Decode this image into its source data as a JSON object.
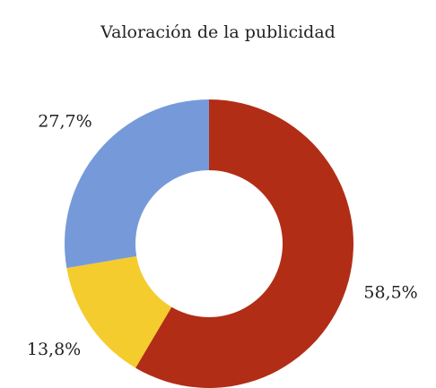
{
  "chart_data": {
    "type": "donut",
    "title": "Valoración de la publicidad",
    "values": [
      58.5,
      13.8,
      27.7
    ],
    "value_labels": [
      "58,5%",
      "13,8%",
      "27,7%"
    ],
    "colors": [
      "#b22d16",
      "#f5cc2e",
      "#769ad9"
    ]
  }
}
